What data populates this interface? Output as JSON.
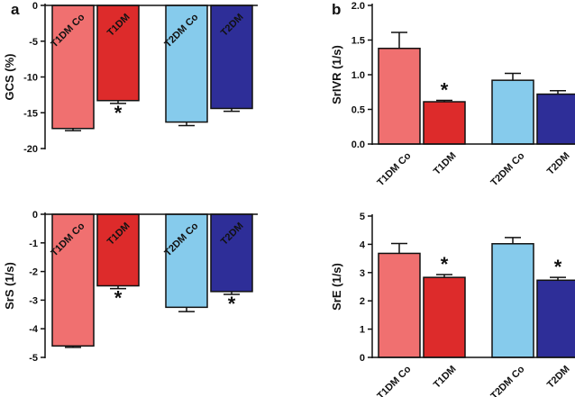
{
  "colors": {
    "T1DM Co": "#f07070",
    "T1DM": "#dd2b2b",
    "T2DM Co": "#86cbec",
    "T2DM": "#2e2e98",
    "axis": "#111111"
  },
  "chart_data": [
    {
      "type": "bar",
      "panel_letter": "a",
      "ylabel": "GCS (%)",
      "ylim": [
        -20,
        0
      ],
      "yticks": [
        0,
        -5,
        -10,
        -15,
        -20
      ],
      "ytick_labels": [
        "0",
        "-5",
        "-10",
        "-15",
        "-20"
      ],
      "xaxis": "top",
      "categories": [
        "T1DM Co",
        "T1DM",
        "T2DM Co",
        "T2DM"
      ],
      "values": [
        -17.2,
        -13.3,
        -16.3,
        -14.4
      ],
      "errors": [
        0.3,
        0.4,
        0.5,
        0.4
      ],
      "significance": [
        "",
        "*",
        "",
        ""
      ]
    },
    {
      "type": "bar",
      "panel_letter": "b",
      "ylabel": "SrIVR (1/s)",
      "ylim": [
        0,
        2.0
      ],
      "yticks": [
        0,
        0.5,
        1.0,
        1.5,
        2.0
      ],
      "ytick_labels": [
        "0.0",
        "0.5",
        "1.0",
        "1.5",
        "2.0"
      ],
      "xaxis": "bottom",
      "categories": [
        "T1DM Co",
        "T1DM",
        "T2DM Co",
        "T2DM"
      ],
      "values": [
        1.38,
        0.61,
        0.92,
        0.72
      ],
      "errors": [
        0.23,
        0.02,
        0.1,
        0.05
      ],
      "significance": [
        "",
        "*",
        "",
        ""
      ]
    },
    {
      "type": "bar",
      "panel_letter": "",
      "ylabel": "SrS (1/s)",
      "ylim": [
        -5,
        0
      ],
      "yticks": [
        0,
        -1,
        -2,
        -3,
        -4,
        -5
      ],
      "ytick_labels": [
        "0",
        "-1",
        "-2",
        "-3",
        "-4",
        "-5"
      ],
      "xaxis": "top",
      "categories": [
        "T1DM Co",
        "T1DM",
        "T2DM Co",
        "T2DM"
      ],
      "values": [
        -4.6,
        -2.5,
        -3.25,
        -2.7
      ],
      "errors": [
        0.05,
        0.1,
        0.15,
        0.1
      ],
      "significance": [
        "",
        "*",
        "",
        "*"
      ]
    },
    {
      "type": "bar",
      "panel_letter": "",
      "ylabel": "SrE (1/s)",
      "ylim": [
        0,
        5
      ],
      "yticks": [
        0,
        1,
        2,
        3,
        4,
        5
      ],
      "ytick_labels": [
        "0",
        "1",
        "2",
        "3",
        "4",
        "5"
      ],
      "xaxis": "bottom",
      "categories": [
        "T1DM Co",
        "T1DM",
        "T2DM Co",
        "T2DM"
      ],
      "values": [
        3.68,
        2.83,
        4.02,
        2.73
      ],
      "errors": [
        0.35,
        0.1,
        0.22,
        0.1
      ],
      "significance": [
        "",
        "*",
        "",
        "*"
      ]
    }
  ]
}
